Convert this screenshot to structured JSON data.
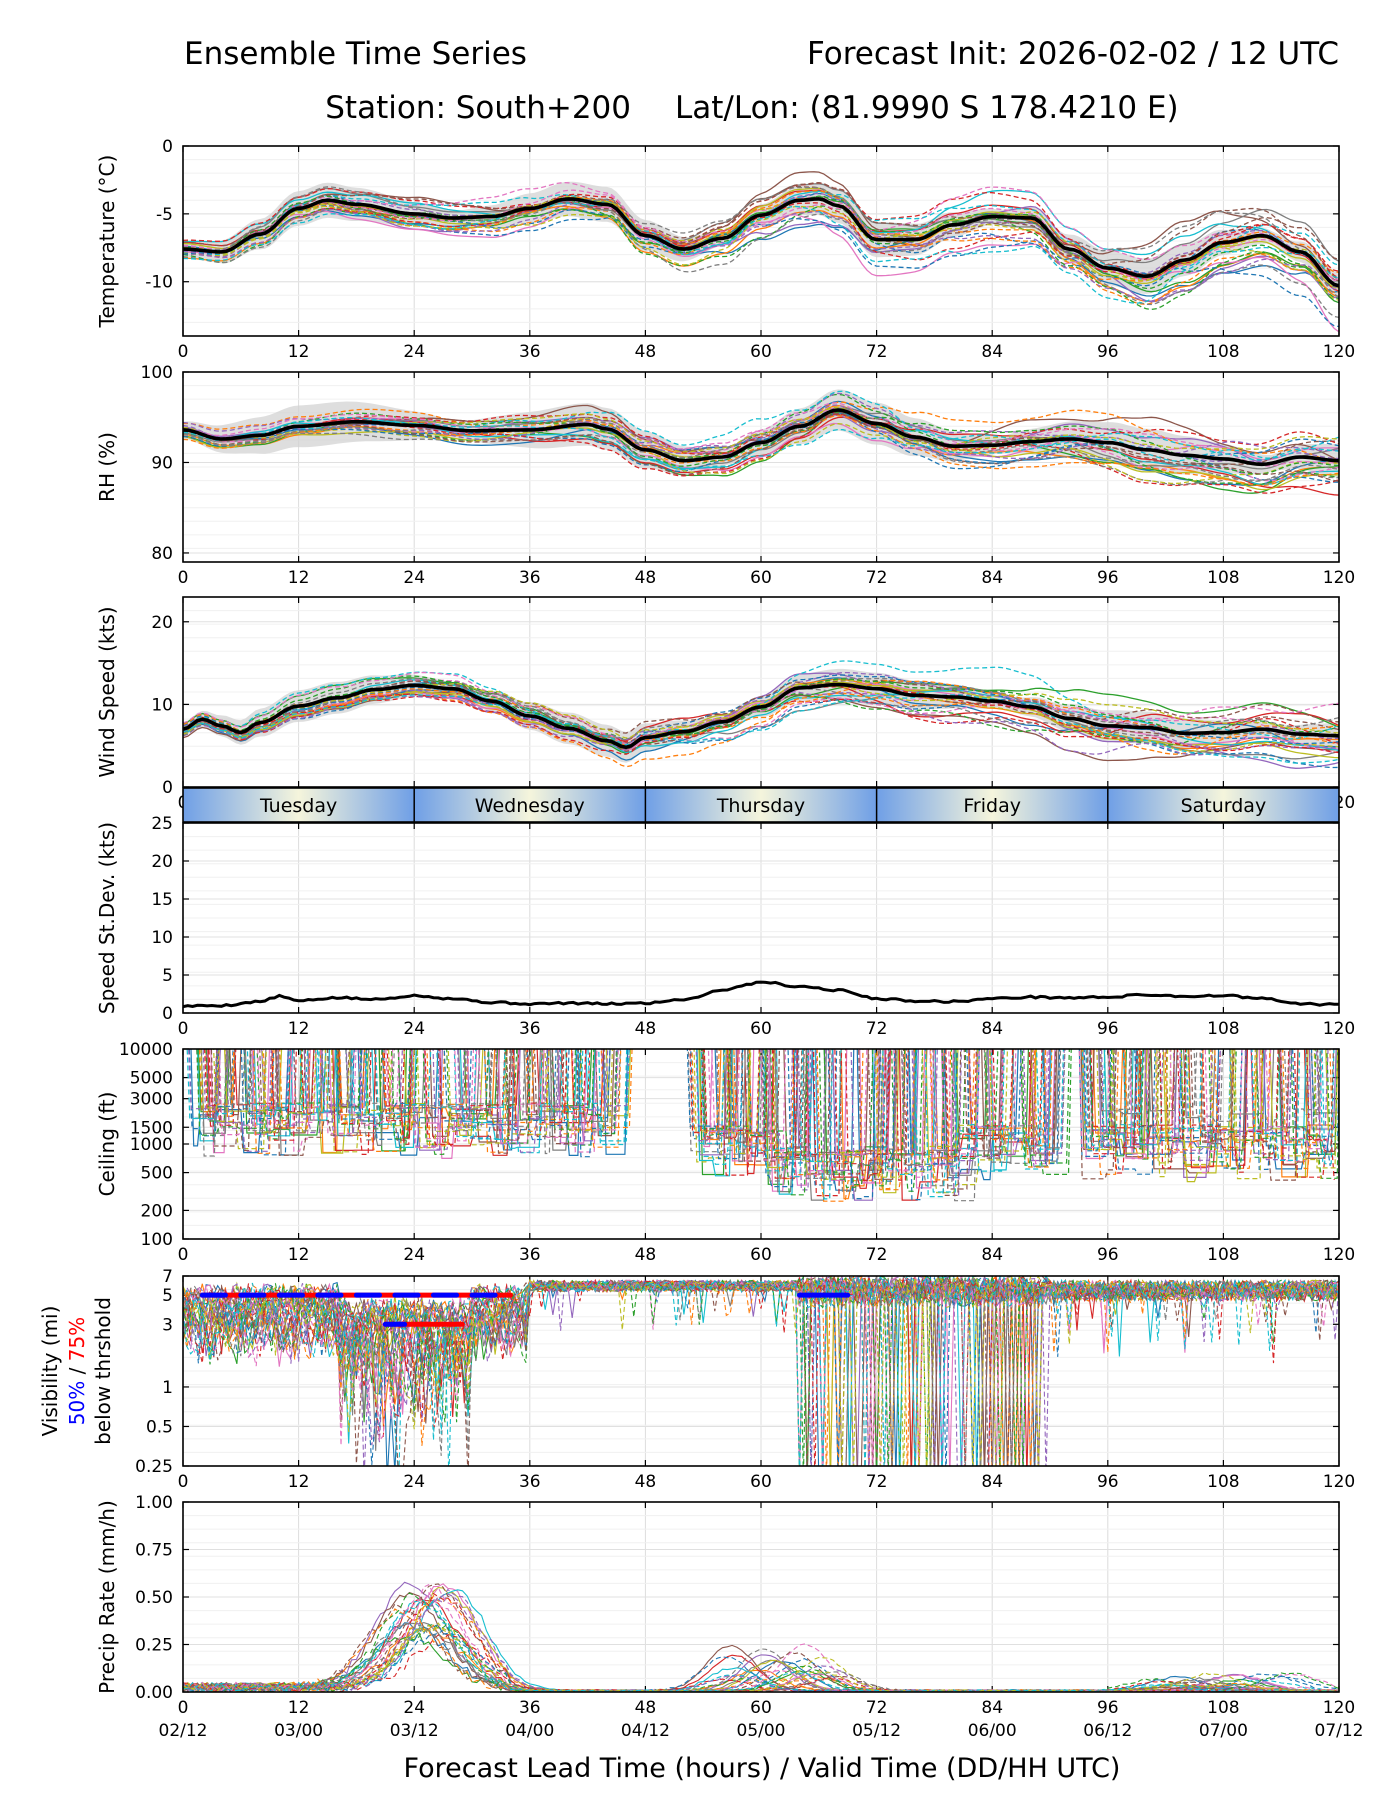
{
  "header": {
    "left_title": "Ensemble Time Series",
    "right_title": "Forecast Init: 2026-02-02 / 12 UTC",
    "station_line": "Station: South+200",
    "latlon_line": "Lat/Lon: (81.9990 S 178.4210 E)"
  },
  "day_bar": [
    "Tuesday",
    "Wednesday",
    "Thursday",
    "Friday",
    "Saturday"
  ],
  "x_axis": {
    "lead_ticks": [
      "0",
      "12",
      "24",
      "36",
      "48",
      "60",
      "72",
      "84",
      "96",
      "108",
      "120"
    ],
    "valid_ticks": [
      "02/12",
      "03/00",
      "03/12",
      "04/00",
      "04/12",
      "05/00",
      "05/12",
      "06/00",
      "06/12",
      "07/00",
      "07/12"
    ],
    "label": "Forecast Lead Time (hours) / Valid Time (DD/HH UTC)"
  },
  "colors": {
    "members": [
      "#1f77b4",
      "#ff7f0e",
      "#2ca02c",
      "#d62728",
      "#9467bd",
      "#8c564b",
      "#e377c2",
      "#7f7f7f",
      "#bcbd22",
      "#17becf"
    ],
    "mean": "#000000",
    "spread": "#d3d3d3",
    "vis_50": "#0000ff",
    "vis_75": "#ff0000",
    "day_bar_edge": "#6f9fe6",
    "day_bar_mid": "#f5f5dc"
  },
  "chart_data": [
    {
      "type": "line",
      "id": "temperature",
      "ylabel": "Temperature (°C)",
      "ylim": [
        -14,
        0
      ],
      "yticks": [
        "0",
        "-5",
        "-10"
      ],
      "ytick_values": [
        0,
        -5,
        -10
      ],
      "xlim": [
        0,
        120
      ],
      "mean": {
        "x": [
          0,
          4,
          8,
          12,
          15,
          18,
          24,
          28,
          32,
          36,
          40,
          44,
          48,
          52,
          56,
          60,
          64,
          66,
          68,
          72,
          76,
          80,
          84,
          88,
          92,
          96,
          100,
          104,
          108,
          112,
          116,
          120
        ],
        "y": [
          -7.6,
          -7.8,
          -6.5,
          -4.6,
          -4.0,
          -4.3,
          -5.0,
          -5.3,
          -5.2,
          -4.6,
          -3.9,
          -4.3,
          -6.6,
          -7.6,
          -6.8,
          -5.1,
          -4.0,
          -3.9,
          -4.4,
          -6.9,
          -6.9,
          -5.8,
          -5.2,
          -5.3,
          -7.6,
          -9.0,
          -9.6,
          -8.4,
          -7.1,
          -6.6,
          -7.8,
          -10.3
        ]
      },
      "spread_halfwidth": 1.0
    },
    {
      "type": "line",
      "id": "rh",
      "ylabel": "RH (%)",
      "ylim": [
        79,
        100
      ],
      "yticks": [
        "100",
        "90",
        "80"
      ],
      "ytick_values": [
        100,
        90,
        80
      ],
      "xlim": [
        0,
        120
      ],
      "mean": {
        "x": [
          0,
          4,
          8,
          12,
          18,
          24,
          30,
          36,
          42,
          44,
          48,
          52,
          56,
          60,
          64,
          68,
          72,
          76,
          80,
          84,
          88,
          92,
          96,
          100,
          104,
          108,
          112,
          116,
          120
        ],
        "y": [
          93.6,
          92.6,
          93.0,
          94.0,
          94.5,
          94.1,
          93.5,
          93.6,
          94.2,
          93.7,
          91.4,
          90.2,
          90.6,
          92.2,
          94.0,
          95.8,
          94.3,
          92.8,
          91.8,
          91.9,
          92.3,
          92.6,
          92.2,
          91.4,
          90.8,
          90.4,
          89.8,
          90.6,
          90.2
        ]
      },
      "spread_halfwidth": 1.8
    },
    {
      "type": "line",
      "id": "wind_speed",
      "ylabel": "Wind Speed (kts)",
      "ylim": [
        0,
        23
      ],
      "yticks": [
        "20",
        "10",
        "0"
      ],
      "ytick_values": [
        20,
        10,
        0
      ],
      "xlim": [
        0,
        120
      ],
      "mean": {
        "x": [
          0,
          2,
          4,
          6,
          8,
          12,
          16,
          20,
          24,
          28,
          32,
          36,
          40,
          44,
          46,
          48,
          52,
          56,
          60,
          64,
          68,
          72,
          76,
          80,
          84,
          88,
          92,
          96,
          100,
          104,
          108,
          112,
          116,
          120
        ],
        "y": [
          7.0,
          8.2,
          7.4,
          6.6,
          7.8,
          9.8,
          10.8,
          11.8,
          12.3,
          11.9,
          10.4,
          8.6,
          7.1,
          5.6,
          4.8,
          6.0,
          6.7,
          7.9,
          9.7,
          12.0,
          12.4,
          11.9,
          11.1,
          10.9,
          10.4,
          9.7,
          8.3,
          7.4,
          7.2,
          6.5,
          6.6,
          7.0,
          6.4,
          6.2
        ]
      },
      "spread_halfwidth": 1.5
    },
    {
      "type": "line",
      "id": "speed_stdev",
      "ylabel": "Speed St.Dev. (kts)",
      "ylim": [
        0,
        25
      ],
      "yticks": [
        "25",
        "20",
        "15",
        "10",
        "5",
        "0"
      ],
      "ytick_values": [
        25,
        20,
        15,
        10,
        5,
        0
      ],
      "xlim": [
        0,
        120
      ],
      "mean": {
        "x": [
          0,
          4,
          8,
          10,
          12,
          16,
          20,
          24,
          28,
          32,
          36,
          40,
          44,
          48,
          52,
          56,
          58,
          60,
          64,
          68,
          72,
          76,
          80,
          84,
          88,
          92,
          96,
          100,
          104,
          108,
          112,
          116,
          120
        ],
        "y": [
          0.9,
          1.0,
          1.5,
          2.2,
          1.6,
          2.0,
          1.8,
          2.3,
          1.9,
          1.4,
          1.2,
          1.3,
          1.2,
          1.3,
          1.8,
          3.0,
          3.6,
          4.1,
          3.5,
          3.0,
          1.9,
          1.6,
          1.5,
          1.9,
          2.1,
          2.0,
          2.1,
          2.4,
          2.2,
          2.3,
          1.9,
          1.2,
          1.1
        ]
      }
    },
    {
      "type": "line",
      "id": "ceiling",
      "ylabel": "Ceiling (ft)",
      "scale": "log",
      "ylim": [
        100,
        10000
      ],
      "yticks": [
        "10000",
        "5000",
        "3000",
        "1500",
        "1000",
        "500",
        "200",
        "100"
      ],
      "ytick_values": [
        10000,
        5000,
        3000,
        1500,
        1000,
        500,
        200,
        100
      ],
      "xlim": [
        0,
        120
      ]
    },
    {
      "type": "line",
      "id": "visibility",
      "ylabel_parts": [
        "Visibility (mi)",
        "50%",
        " / ",
        "75%",
        "below thrshold"
      ],
      "scale": "log",
      "ylim": [
        0.25,
        7
      ],
      "yticks": [
        "7",
        "5",
        "3",
        "1",
        "0.5",
        "0.25"
      ],
      "ytick_values": [
        7,
        5,
        3,
        1,
        0.5,
        0.25
      ],
      "xlim": [
        0,
        120
      ],
      "threshold_bars": [
        {
          "level": "75%",
          "y": 5,
          "x0": 2,
          "x1": 34
        },
        {
          "level": "50%",
          "y": 5,
          "x0": 2,
          "x1": 34
        },
        {
          "level": "75%",
          "y": 3,
          "x0": 21,
          "x1": 29
        },
        {
          "level": "50%",
          "y": 3,
          "x0": 21,
          "x1": 23
        },
        {
          "level": "50%",
          "y": 5,
          "x0": 64,
          "x1": 69
        }
      ]
    },
    {
      "type": "line",
      "id": "precip_rate",
      "ylabel": "Precip Rate (mm/h)",
      "ylim": [
        0,
        1
      ],
      "yticks": [
        "1.00",
        "0.75",
        "0.50",
        "0.25",
        "0.00"
      ],
      "ytick_values": [
        1,
        0.75,
        0.5,
        0.25,
        0
      ],
      "xlim": [
        0,
        120
      ]
    }
  ]
}
